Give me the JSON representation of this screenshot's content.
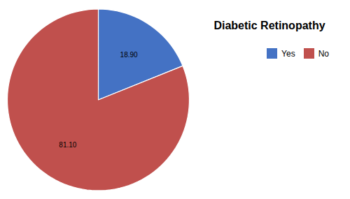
{
  "chart_data": {
    "type": "pie",
    "title": "Diabetic Retinopathy",
    "categories": [
      "Yes",
      "No"
    ],
    "values": [
      18.9,
      81.1
    ],
    "value_labels": [
      "18.90",
      "81.10"
    ],
    "colors": [
      "#4472C4",
      "#C0504D"
    ],
    "data_labels": true,
    "legend": "upper right"
  }
}
